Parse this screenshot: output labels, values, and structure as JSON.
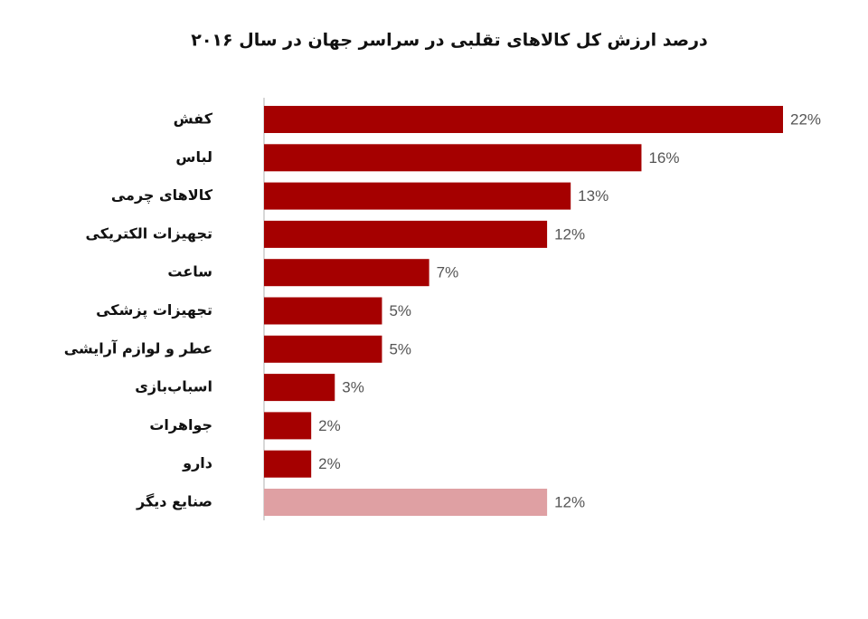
{
  "chart_data": {
    "type": "bar",
    "orientation": "horizontal",
    "title": "درصد ارزش کل کالاهای تقلبی در سراسر جهان در سال ۲۰۱۶",
    "categories": [
      "کفش",
      "لباس",
      "کالاهای چرمی",
      "تجهیزات الکتریکی",
      "ساعت",
      "تجهیزات پزشکی",
      "عطر و لوازم آرایشی",
      "اسباب‌بازی",
      "جواهرات",
      "دارو",
      "صنایع دیگر"
    ],
    "values": [
      22,
      16,
      13,
      12,
      7,
      5,
      5,
      3,
      2,
      2,
      12
    ],
    "value_labels": [
      "22%",
      "16%",
      "13%",
      "12%",
      "7%",
      "5%",
      "5%",
      "3%",
      "2%",
      "2%",
      "12%"
    ],
    "colors": [
      "#a50000",
      "#a50000",
      "#a50000",
      "#a50000",
      "#a50000",
      "#a50000",
      "#a50000",
      "#a50000",
      "#a50000",
      "#a50000",
      "#dfa0a3"
    ],
    "xlim": [
      0,
      22
    ]
  }
}
